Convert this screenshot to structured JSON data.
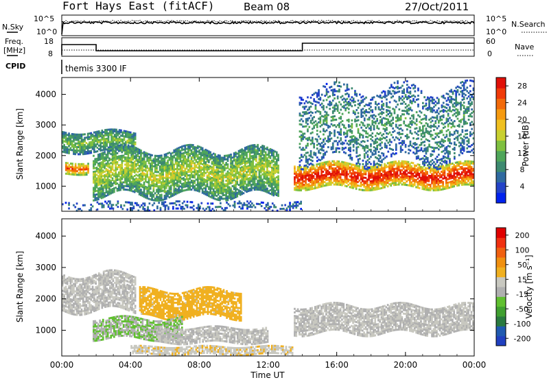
{
  "header": {
    "station": "Fort Hays East (fitACF)",
    "beam": "Beam 08",
    "date": "27/Oct/2011"
  },
  "meta_labels": {
    "nsky": "N.Sky",
    "nsky_ticks": [
      "10^5",
      "10^0"
    ],
    "nsearch": "N.Search",
    "nsearch_ticks": [
      "10^5",
      "10^0"
    ],
    "freq_line1": "Freq.",
    "freq_line2": "[MHz]",
    "freq_ticks": [
      "18",
      "8"
    ],
    "nave": "Nave",
    "nave_ticks": [
      "60",
      "0"
    ],
    "cpid": "CPID",
    "cpid_text": "themis 3300 IF"
  },
  "chart_data": [
    {
      "type": "heatmap",
      "panel": "power",
      "ylabel": "Slant Range [km]",
      "xlabel": "",
      "x_ticks": [
        "00:00",
        "04:00",
        "08:00",
        "12:00",
        "16:00",
        "20:00",
        "00:00"
      ],
      "y_ticks": [
        "1000",
        "2000",
        "3000",
        "4000"
      ],
      "xlim_hours": [
        0,
        24
      ],
      "ylim_km": [
        180,
        4550
      ],
      "colorbar": {
        "label": "Power [dB]",
        "ticks": [
          "4",
          "8",
          "12",
          "16",
          "20",
          "24",
          "28"
        ],
        "range": [
          0,
          30
        ],
        "colors": [
          "#0022ee",
          "#2444c8",
          "#2f6aa0",
          "#3d8a70",
          "#4fa65a",
          "#7fc040",
          "#c8d030",
          "#f0c020",
          "#f59a10",
          "#f26a0a",
          "#f03a08",
          "#e01008"
        ]
      },
      "features": [
        {
          "name": "morning lower band",
          "t_start": 0.2,
          "t_end": 1.6,
          "range_km": [
            1400,
            1800
          ],
          "power_db": 22
        },
        {
          "name": "morning upper band",
          "t_start": 0.0,
          "t_end": 4.3,
          "range_km": [
            2100,
            2800
          ],
          "power_db": 12
        },
        {
          "name": "evening arc",
          "t_start": 1.8,
          "t_end": 12.6,
          "range_km": [
            700,
            2200
          ],
          "power_db": 14
        },
        {
          "name": "near-range noise",
          "t_start": 0.0,
          "t_end": 14.0,
          "range_km": [
            200,
            500
          ],
          "power_db": 6
        },
        {
          "name": "post-midnight band",
          "t_start": 13.5,
          "t_end": 24.0,
          "range_km": [
            950,
            1750
          ],
          "power_db": 26
        },
        {
          "name": "upper scatter",
          "t_start": 13.8,
          "t_end": 24.0,
          "range_km": [
            1800,
            4200
          ],
          "power_db": 9
        }
      ]
    },
    {
      "type": "heatmap",
      "panel": "velocity",
      "ylabel": "Slant Range [km]",
      "xlabel": "Time UT",
      "x_ticks": [
        "00:00",
        "04:00",
        "08:00",
        "12:00",
        "16:00",
        "20:00",
        "00:00"
      ],
      "y_ticks": [
        "1000",
        "2000",
        "3000",
        "4000"
      ],
      "xlim_hours": [
        0,
        24
      ],
      "ylim_km": [
        180,
        4550
      ],
      "colorbar": {
        "label": "Velocity [m s⁻¹]",
        "ticks": [
          "200",
          "100",
          "50",
          "15",
          "-15",
          "-50",
          "-100",
          "-200"
        ],
        "range": [
          -250,
          250
        ],
        "colors": [
          "#2040c0",
          "#205ab0",
          "#2a7a40",
          "#40a030",
          "#60c030",
          "#b0b0b0",
          "#c8c8c0",
          "#f0b020",
          "#f09010",
          "#f06010",
          "#f03010",
          "#e00000"
        ]
      },
      "features": [
        {
          "name": "upper grey band",
          "t_start": 0.0,
          "t_end": 4.3,
          "range_km": [
            1600,
            2800
          ],
          "velocity": 0
        },
        {
          "name": "orange arc",
          "t_start": 4.5,
          "t_end": 10.5,
          "range_km": [
            1400,
            2300
          ],
          "velocity": -60
        },
        {
          "name": "green lower arc",
          "t_start": 1.8,
          "t_end": 7.0,
          "range_km": [
            700,
            1400
          ],
          "velocity": 40
        },
        {
          "name": "grey lower arc",
          "t_start": 5.5,
          "t_end": 12.0,
          "range_km": [
            600,
            1100
          ],
          "velocity": 0
        },
        {
          "name": "near-range orange/green",
          "t_start": 4.0,
          "t_end": 13.5,
          "range_km": [
            200,
            500
          ],
          "velocity": -30
        },
        {
          "name": "post-midnight grey band",
          "t_start": 13.5,
          "t_end": 24.0,
          "range_km": [
            900,
            1800
          ],
          "velocity": 0
        }
      ]
    }
  ]
}
